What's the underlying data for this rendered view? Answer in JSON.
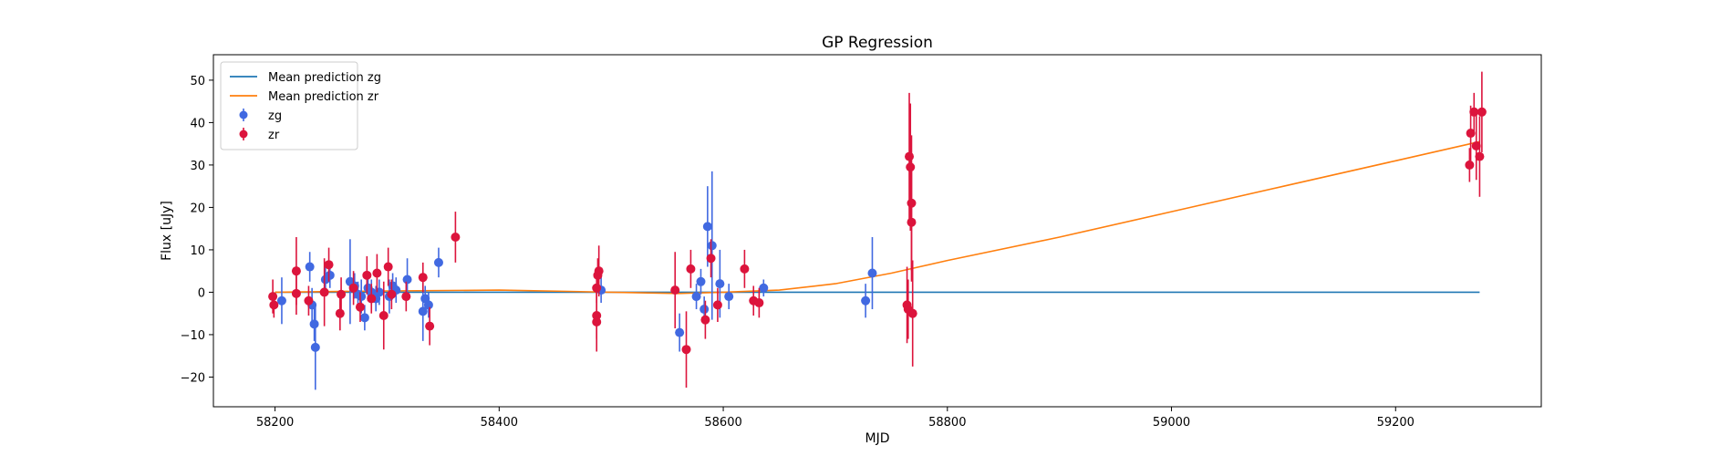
{
  "chart_data": {
    "type": "scatter",
    "title": "GP Regression",
    "xlabel": "MJD",
    "ylabel": "Flux [uJy]",
    "xlim": [
      58145,
      59330
    ],
    "ylim": [
      -27,
      56
    ],
    "xticks": [
      58200,
      58400,
      58600,
      58800,
      59000,
      59200
    ],
    "yticks": [
      -20,
      -10,
      0,
      10,
      20,
      30,
      40,
      50
    ],
    "grid": false,
    "legend_position": "top-left",
    "colors": {
      "zg": "#4169e1",
      "zr": "#dc143c",
      "mean_zg": "#1f77b4",
      "mean_zr": "#ff7f0e"
    },
    "legend": [
      {
        "label": "Mean prediction zg",
        "kind": "line",
        "color": "#1f77b4"
      },
      {
        "label": "Mean prediction zr",
        "kind": "line",
        "color": "#ff7f0e"
      },
      {
        "label": "zg",
        "kind": "errorbar",
        "color": "#4169e1"
      },
      {
        "label": "zr",
        "kind": "errorbar",
        "color": "#dc143c"
      }
    ],
    "series": [
      {
        "name": "Mean prediction zg",
        "kind": "line",
        "color": "#1f77b4",
        "x": [
          58200,
          59275
        ],
        "y": [
          0,
          0
        ]
      },
      {
        "name": "Mean prediction zr",
        "kind": "line",
        "color": "#ff7f0e",
        "x": [
          58200,
          58300,
          58400,
          58500,
          58560,
          58600,
          58650,
          58700,
          58750,
          58800,
          58900,
          59000,
          59100,
          59200,
          59275
        ],
        "y": [
          0,
          0.3,
          0.5,
          0.0,
          -0.3,
          0,
          0.5,
          2,
          4.5,
          7.5,
          13,
          19,
          25,
          31,
          35.5
        ]
      },
      {
        "name": "zg",
        "kind": "errorbar",
        "color": "#4169e1",
        "points": [
          {
            "x": 58206,
            "y": -2,
            "err": 5.5
          },
          {
            "x": 58231,
            "y": 6,
            "err": 3.5
          },
          {
            "x": 58233,
            "y": -3,
            "err": 4
          },
          {
            "x": 58235,
            "y": -7.5,
            "err": 4
          },
          {
            "x": 58236,
            "y": -13,
            "err": 10
          },
          {
            "x": 58245,
            "y": 3,
            "err": 3
          },
          {
            "x": 58249,
            "y": 4,
            "err": 3
          },
          {
            "x": 58267,
            "y": 2.5,
            "err": 10
          },
          {
            "x": 58271,
            "y": 1.5,
            "err": 3
          },
          {
            "x": 58274,
            "y": -0.5,
            "err": 3
          },
          {
            "x": 58277,
            "y": -1,
            "err": 4
          },
          {
            "x": 58280,
            "y": -6,
            "err": 3
          },
          {
            "x": 58283,
            "y": 1,
            "err": 3
          },
          {
            "x": 58286,
            "y": 0,
            "err": 3
          },
          {
            "x": 58290,
            "y": -1.5,
            "err": 3
          },
          {
            "x": 58293,
            "y": 0,
            "err": 3
          },
          {
            "x": 58302,
            "y": -1,
            "err": 4
          },
          {
            "x": 58305,
            "y": 1.5,
            "err": 3
          },
          {
            "x": 58308,
            "y": 0.5,
            "err": 3
          },
          {
            "x": 58318,
            "y": 3,
            "err": 5
          },
          {
            "x": 58332,
            "y": -4.5,
            "err": 7
          },
          {
            "x": 58334,
            "y": -1.5,
            "err": 3
          },
          {
            "x": 58337,
            "y": -3,
            "err": 3
          },
          {
            "x": 58346,
            "y": 7,
            "err": 3.5
          },
          {
            "x": 58491,
            "y": 0.5,
            "err": 3
          },
          {
            "x": 58561,
            "y": -9.5,
            "err": 4.5
          },
          {
            "x": 58576,
            "y": -1,
            "err": 3
          },
          {
            "x": 58580,
            "y": 2.5,
            "err": 3
          },
          {
            "x": 58583,
            "y": -4,
            "err": 3
          },
          {
            "x": 58586,
            "y": 15.5,
            "err": 9.5
          },
          {
            "x": 58590,
            "y": 11,
            "err": 17.5
          },
          {
            "x": 58597,
            "y": 2,
            "err": 8
          },
          {
            "x": 58605,
            "y": -1,
            "err": 3
          },
          {
            "x": 58636,
            "y": 1,
            "err": 2
          },
          {
            "x": 58727,
            "y": -2,
            "err": 4
          },
          {
            "x": 58733,
            "y": 4.5,
            "err": 8.5
          }
        ]
      },
      {
        "name": "zr",
        "kind": "errorbar",
        "color": "#dc143c",
        "points": [
          {
            "x": 58198,
            "y": -1,
            "err": 4
          },
          {
            "x": 58199,
            "y": -3,
            "err": 3
          },
          {
            "x": 58219,
            "y": 5,
            "err": 8
          },
          {
            "x": 58219,
            "y": -0.3,
            "err": 5
          },
          {
            "x": 58230,
            "y": -2,
            "err": 3.5
          },
          {
            "x": 58244,
            "y": 0,
            "err": 8
          },
          {
            "x": 58248,
            "y": 6.5,
            "err": 4
          },
          {
            "x": 58258,
            "y": -5,
            "err": 4
          },
          {
            "x": 58259,
            "y": -0.5,
            "err": 4
          },
          {
            "x": 58270,
            "y": 1,
            "err": 4
          },
          {
            "x": 58276,
            "y": -3.5,
            "err": 3.5
          },
          {
            "x": 58282,
            "y": 4,
            "err": 4.5
          },
          {
            "x": 58286,
            "y": -1.5,
            "err": 3.5
          },
          {
            "x": 58291,
            "y": 4.5,
            "err": 4.5
          },
          {
            "x": 58297,
            "y": -5.5,
            "err": 8
          },
          {
            "x": 58301,
            "y": 6,
            "err": 4.5
          },
          {
            "x": 58304,
            "y": -0.5,
            "err": 3.5
          },
          {
            "x": 58317,
            "y": -1,
            "err": 3.5
          },
          {
            "x": 58332,
            "y": 3.5,
            "err": 3.5
          },
          {
            "x": 58338,
            "y": -8,
            "err": 4.5
          },
          {
            "x": 58361,
            "y": 13,
            "err": 6
          },
          {
            "x": 58487,
            "y": -7,
            "err": 7
          },
          {
            "x": 58487,
            "y": -5.5,
            "err": 5.5
          },
          {
            "x": 58487,
            "y": 1,
            "err": 3.5
          },
          {
            "x": 58488,
            "y": 4,
            "err": 4
          },
          {
            "x": 58489,
            "y": 5,
            "err": 6
          },
          {
            "x": 58557,
            "y": 0.5,
            "err": 9
          },
          {
            "x": 58567,
            "y": -13.5,
            "err": 9
          },
          {
            "x": 58571,
            "y": 5.5,
            "err": 4.5
          },
          {
            "x": 58584,
            "y": -6.5,
            "err": 4.5
          },
          {
            "x": 58589,
            "y": 8,
            "err": 4.5
          },
          {
            "x": 58595,
            "y": -3,
            "err": 4
          },
          {
            "x": 58619,
            "y": 5.5,
            "err": 4.5
          },
          {
            "x": 58627,
            "y": -2,
            "err": 3.5
          },
          {
            "x": 58632,
            "y": -2.5,
            "err": 3.5
          },
          {
            "x": 58764,
            "y": -3,
            "err": 9
          },
          {
            "x": 58765,
            "y": -4,
            "err": 7
          },
          {
            "x": 58766,
            "y": 32,
            "err": 15
          },
          {
            "x": 58767,
            "y": 29.5,
            "err": 15
          },
          {
            "x": 58768,
            "y": 21,
            "err": 16
          },
          {
            "x": 58768,
            "y": 16.5,
            "err": 14
          },
          {
            "x": 58769,
            "y": -5,
            "err": 12.5
          },
          {
            "x": 59266,
            "y": 30,
            "err": 4
          },
          {
            "x": 59267,
            "y": 37.5,
            "err": 6.5
          },
          {
            "x": 59270,
            "y": 42.5,
            "err": 4.5
          },
          {
            "x": 59272,
            "y": 34.5,
            "err": 8
          },
          {
            "x": 59275,
            "y": 32,
            "err": 9.5
          },
          {
            "x": 59277,
            "y": 42.5,
            "err": 9.5
          }
        ]
      }
    ]
  }
}
